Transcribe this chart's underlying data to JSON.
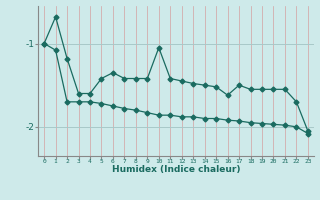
{
  "title": "",
  "xlabel": "Humidex (Indice chaleur)",
  "ylabel": "",
  "bg_color": "#ceeaea",
  "line_color": "#1a6b60",
  "grid_color_v": "#d4a0a0",
  "grid_color_h": "#a8c8c8",
  "xlim": [
    -0.5,
    23.5
  ],
  "ylim": [
    -2.35,
    -0.55
  ],
  "yticks": [
    -2,
    -1
  ],
  "xticks": [
    0,
    1,
    2,
    3,
    4,
    5,
    6,
    7,
    8,
    9,
    10,
    11,
    12,
    13,
    14,
    15,
    16,
    17,
    18,
    19,
    20,
    21,
    22,
    23
  ],
  "line1_x": [
    0,
    1,
    2,
    3,
    4,
    5,
    6,
    7,
    8,
    9,
    10,
    11,
    12,
    13,
    14,
    15,
    16,
    17,
    18,
    19,
    20,
    21,
    22,
    23
  ],
  "line1_y": [
    -1.0,
    -0.68,
    -1.18,
    -1.6,
    -1.6,
    -1.42,
    -1.35,
    -1.42,
    -1.42,
    -1.42,
    -1.05,
    -1.42,
    -1.45,
    -1.48,
    -1.5,
    -1.52,
    -1.62,
    -1.5,
    -1.55,
    -1.55,
    -1.55,
    -1.55,
    -1.7,
    -2.05
  ],
  "line2_x": [
    0,
    1,
    2,
    3,
    4,
    5,
    6,
    7,
    8,
    9,
    10,
    11,
    12,
    13,
    14,
    15,
    16,
    17,
    18,
    19,
    20,
    21,
    22,
    23
  ],
  "line2_y": [
    -1.0,
    -1.08,
    -1.7,
    -1.7,
    -1.7,
    -1.72,
    -1.75,
    -1.78,
    -1.8,
    -1.83,
    -1.86,
    -1.86,
    -1.88,
    -1.88,
    -1.9,
    -1.9,
    -1.92,
    -1.93,
    -1.95,
    -1.96,
    -1.97,
    -1.98,
    -2.0,
    -2.08
  ],
  "markersize": 2.5,
  "linewidth": 0.9
}
